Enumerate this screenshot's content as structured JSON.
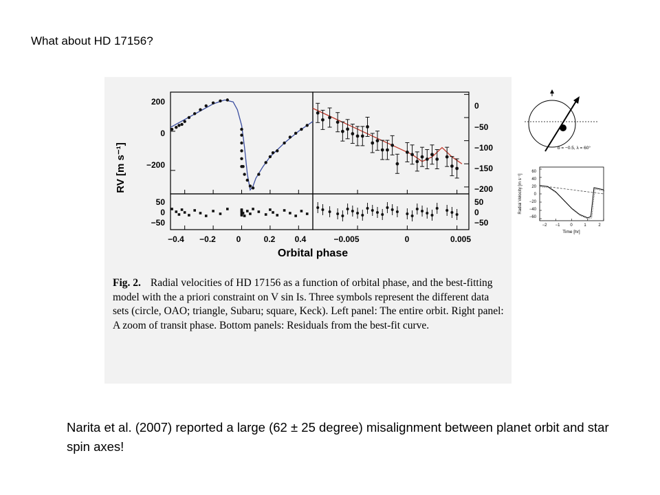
{
  "slide": {
    "title": "What about HD 17156?",
    "conclusion": "Narita et al. (2007) reported a large (62 ± 25 degree) misalignment between planet orbit and star spin axes!"
  },
  "figure": {
    "ylabel": "RV [m s⁻¹]",
    "xlabel": "Orbital phase",
    "left_top_yticks": [
      "200",
      "0",
      "−200"
    ],
    "right_top_yticks": [
      "0",
      "−50",
      "−100",
      "−150",
      "−200"
    ],
    "left_resid_yticks": [
      "50",
      "0",
      "−50"
    ],
    "right_resid_yticks": [
      "50",
      "0",
      "−50"
    ],
    "left_xticks": [
      "−0.4",
      "−0.2",
      "0",
      "0.2",
      "0.4"
    ],
    "right_xticks": [
      "−0.005",
      "0",
      "0.005"
    ],
    "caption_label": "Fig. 2.",
    "caption_text": "Radial velocities of HD 17156 as a function of orbital phase, and the best-fitting model with the a priori constraint on V sin Is. Three symbols represent the different data sets (circle, OAO; triangle, Subaru; square, Keck). Left panel: The entire orbit. Right panel: A zoom of transit phase. Bottom panels: Residuals from the best-fit curve.",
    "colors": {
      "left_model": "#3b4ea0",
      "right_model": "#c0392b",
      "background": "#f2f2f2"
    }
  },
  "inset": {
    "geometry_label": "b = −0.5, λ = 60°",
    "ylabel": "Radial Velocity [m s⁻¹]",
    "xlabel": "Time [hr]",
    "yticks": [
      "60",
      "40",
      "20",
      "0",
      "−20",
      "−40",
      "−60"
    ],
    "xticks": [
      "−2",
      "−1",
      "0",
      "1",
      "2"
    ]
  },
  "chart_data": [
    {
      "type": "scatter",
      "panel": "left-top",
      "xlabel": "Orbital phase",
      "ylabel": "RV [m s⁻¹]",
      "xlim": [
        -0.5,
        0.5
      ],
      "ylim": [
        -320,
        200
      ],
      "model": {
        "x": [
          -0.5,
          -0.4,
          -0.3,
          -0.2,
          -0.12,
          -0.06,
          -0.03,
          0.0,
          0.02,
          0.04,
          0.06,
          0.08,
          0.1,
          0.15,
          0.2,
          0.3,
          0.4,
          0.5
        ],
        "y": [
          20,
          60,
          100,
          140,
          160,
          150,
          110,
          30,
          -80,
          -220,
          -300,
          -280,
          -240,
          -180,
          -130,
          -60,
          0,
          50
        ]
      },
      "points": {
        "x": [
          -0.49,
          -0.46,
          -0.44,
          -0.42,
          -0.4,
          -0.37,
          -0.33,
          -0.29,
          -0.25,
          -0.2,
          -0.15,
          -0.1,
          0.0,
          0.0,
          0.0,
          0.0,
          0.0,
          0.0,
          0.01,
          0.02,
          0.04,
          0.06,
          0.08,
          0.12,
          0.17,
          0.2,
          0.22,
          0.25,
          0.3,
          0.34,
          0.38,
          0.42,
          0.46
        ],
        "y": [
          10,
          20,
          30,
          35,
          50,
          70,
          90,
          110,
          130,
          145,
          155,
          160,
          10,
          -20,
          -60,
          -100,
          -140,
          -180,
          -180,
          -220,
          -250,
          -280,
          -290,
          -220,
          -160,
          -130,
          -110,
          -100,
          -60,
          -30,
          -10,
          10,
          30
        ]
      }
    },
    {
      "type": "scatter",
      "panel": "right-top",
      "xlim": [
        -0.0095,
        0.0062
      ],
      "ylim": [
        -215,
        5
      ],
      "model": {
        "x": [
          -0.0095,
          -0.007,
          -0.005,
          -0.003,
          -0.001,
          0.0005,
          0.0015,
          0.0025,
          0.0035,
          0.0045,
          0.0055
        ],
        "y": [
          -30,
          -55,
          -75,
          -95,
          -115,
          -130,
          -145,
          -135,
          -115,
          -135,
          -150
        ]
      },
      "points": {
        "x": [
          -0.009,
          -0.0085,
          -0.0078,
          -0.007,
          -0.0065,
          -0.006,
          -0.0055,
          -0.005,
          -0.0045,
          -0.004,
          -0.0035,
          -0.003,
          -0.0025,
          -0.002,
          -0.0015,
          -0.001,
          0.0,
          0.0005,
          0.001,
          0.0015,
          0.002,
          0.0025,
          0.003,
          0.004,
          0.0045,
          0.005
        ],
        "y": [
          -40,
          -55,
          -50,
          -60,
          -80,
          -75,
          -85,
          -90,
          -90,
          -70,
          -105,
          -100,
          -120,
          -120,
          -110,
          -150,
          -125,
          -130,
          -145,
          -135,
          -140,
          -130,
          -140,
          -135,
          -155,
          -160
        ]
      }
    },
    {
      "type": "scatter",
      "panel": "inset",
      "xlabel": "Time [hr]",
      "ylabel": "Radial Velocity [m s⁻¹]",
      "xlim": [
        -2,
        2
      ],
      "ylim": [
        -65,
        65
      ],
      "model_solid": {
        "x": [
          -2,
          -1.5,
          -1,
          -0.5,
          0,
          0.5,
          1.0,
          1.2,
          1.4,
          2
        ],
        "y": [
          20,
          18,
          5,
          -15,
          -35,
          -50,
          -58,
          -55,
          15,
          10
        ]
      },
      "model_dashed": {
        "x": [
          -2,
          2
        ],
        "y": [
          20,
          0
        ]
      }
    }
  ]
}
